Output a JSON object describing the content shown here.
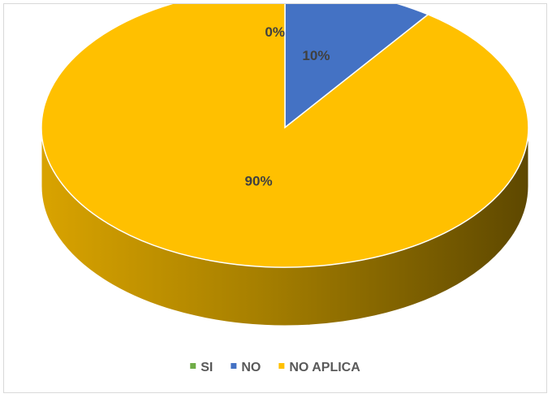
{
  "chart_data": {
    "type": "pie",
    "categories": [
      "SI",
      "NO",
      "NO APLICA"
    ],
    "values": [
      0,
      10,
      90
    ],
    "data_labels": [
      "0%",
      "10%",
      "90%"
    ],
    "colors": [
      "#70ad47",
      "#4472c4",
      "#ffc000"
    ],
    "title": "",
    "legend": {
      "position": "bottom",
      "items": [
        {
          "label": "SI",
          "color": "#70ad47"
        },
        {
          "label": "NO",
          "color": "#4472c4"
        },
        {
          "label": "NO APLICA",
          "color": "#ffc000"
        }
      ]
    },
    "style": "3d"
  }
}
